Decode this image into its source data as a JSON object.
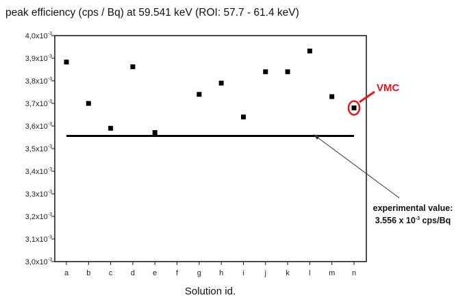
{
  "chart_data": {
    "type": "scatter",
    "title": "peak efficiency (cps / Bq) at 59.541 keV (ROI: 57.7 - 61.4 keV)",
    "xlabel": "Solution id.",
    "ylabel": "",
    "categories": [
      "a",
      "b",
      "c",
      "d",
      "e",
      "f",
      "g",
      "h",
      "i",
      "j",
      "k",
      "l",
      "m",
      "n"
    ],
    "values": [
      3.883,
      3.7,
      3.59,
      3.862,
      3.571,
      null,
      3.74,
      3.79,
      3.64,
      3.84,
      3.84,
      3.932,
      3.73,
      3.68
    ],
    "value_multiplier": "x10^-3",
    "ylim": [
      3.0,
      4.0
    ],
    "yticks": [
      "3,0",
      "3,1",
      "3,2",
      "3,3",
      "3,4",
      "3,5",
      "3,6",
      "3,7",
      "3,8",
      "3,9",
      "4,0"
    ],
    "ytick_suffix": "x10",
    "ytick_exp": "-3",
    "reference_line": {
      "value": 3.556
    },
    "annotations": {
      "experimental_line1": "experimental value:",
      "experimental_line2_a": "3.556 x 10",
      "experimental_line2_exp": "-3",
      "experimental_line2_b": " cps/Bq",
      "highlight_label": "VMC",
      "highlight_category": "n"
    },
    "colors": {
      "marker": "#000000",
      "highlight": "#e8141b"
    }
  }
}
